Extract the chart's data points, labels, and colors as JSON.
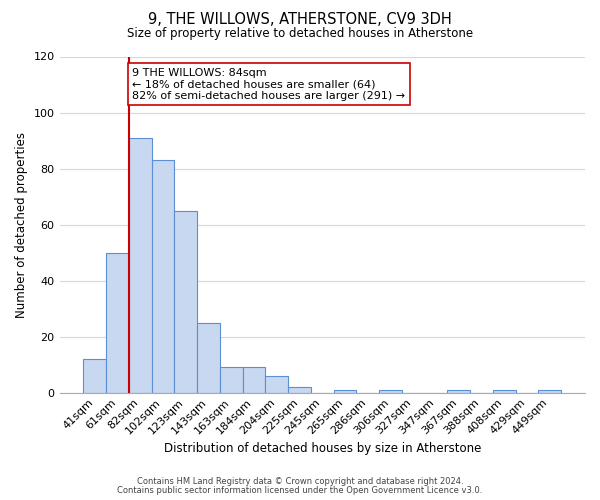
{
  "title": "9, THE WILLOWS, ATHERSTONE, CV9 3DH",
  "subtitle": "Size of property relative to detached houses in Atherstone",
  "xlabel": "Distribution of detached houses by size in Atherstone",
  "ylabel": "Number of detached properties",
  "bar_labels": [
    "41sqm",
    "61sqm",
    "82sqm",
    "102sqm",
    "123sqm",
    "143sqm",
    "163sqm",
    "184sqm",
    "204sqm",
    "225sqm",
    "245sqm",
    "265sqm",
    "286sqm",
    "306sqm",
    "327sqm",
    "347sqm",
    "367sqm",
    "388sqm",
    "408sqm",
    "429sqm",
    "449sqm"
  ],
  "bar_values": [
    12,
    50,
    91,
    83,
    65,
    25,
    9,
    9,
    6,
    2,
    0,
    1,
    0,
    1,
    0,
    0,
    1,
    0,
    1,
    0,
    1
  ],
  "bar_color": "#c8d8f0",
  "bar_edge_color": "#5b8fd4",
  "vline_index": 2,
  "vline_color": "#cc0000",
  "ylim": [
    0,
    120
  ],
  "yticks": [
    0,
    20,
    40,
    60,
    80,
    100,
    120
  ],
  "annotation_text": "9 THE WILLOWS: 84sqm\n← 18% of detached houses are smaller (64)\n82% of semi-detached houses are larger (291) →",
  "annotation_box_color": "#ffffff",
  "annotation_box_edge": "#cc0000",
  "footnote1": "Contains HM Land Registry data © Crown copyright and database right 2024.",
  "footnote2": "Contains public sector information licensed under the Open Government Licence v3.0.",
  "bg_color": "#ffffff",
  "grid_color": "#ccd9ea"
}
